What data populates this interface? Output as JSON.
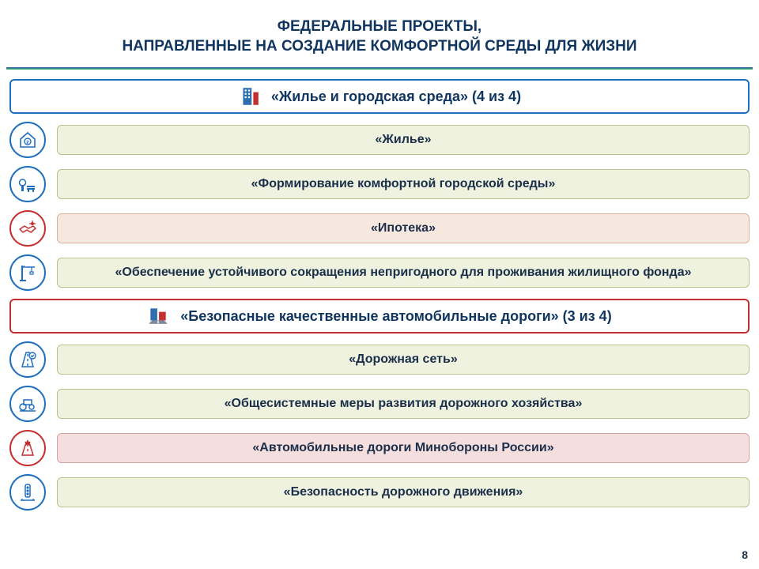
{
  "title_line1": "ФЕДЕРАЛЬНЫЕ ПРОЕКТЫ,",
  "title_line2": "НАПРАВЛЕННЫЕ НА СОЗДАНИЕ КОМФОРТНОЙ СРЕДЫ ДЛЯ ЖИЗНИ",
  "page_number": "8",
  "colors": {
    "title_text": "#10365f",
    "divider_top": "#2f6fb0",
    "divider_bottom": "#3aa56b",
    "text_dark": "#1c2f4a"
  },
  "sections": [
    {
      "header": "«Жилье и городская среда» (4 из 4)",
      "header_border": "#1f6fbf",
      "header_bg": "#ffffff",
      "icon": "building",
      "items": [
        {
          "label": "«Жилье»",
          "icon": "house-ruble",
          "circle_border": "#1f6fbf",
          "icon_color": "#1f6fbf",
          "pill_bg": "#eef2df",
          "pill_border": "#b8c48e"
        },
        {
          "label": "«Формирование комфортной городской среды»",
          "icon": "park",
          "circle_border": "#1f6fbf",
          "icon_color": "#1f6fbf",
          "pill_bg": "#eef2df",
          "pill_border": "#b8c48e"
        },
        {
          "label": "«Ипотека»",
          "icon": "handshake",
          "circle_border": "#c62f2f",
          "icon_color": "#c62f2f",
          "pill_bg": "#f7e8df",
          "pill_border": "#d9b39e"
        },
        {
          "label": "«Обеспечение устойчивого сокращения непригодного для проживания жилищного фонда»",
          "icon": "crane",
          "circle_border": "#1f6fbf",
          "icon_color": "#1f6fbf",
          "pill_bg": "#eef2df",
          "pill_border": "#b8c48e"
        }
      ]
    },
    {
      "header": "«Безопасные качественные автомобильные дороги» (3 из 4)",
      "header_border": "#c62f2f",
      "header_bg": "#ffffff",
      "icon": "city-road",
      "items": [
        {
          "label": "«Дорожная сеть»",
          "icon": "road-check",
          "circle_border": "#1f6fbf",
          "icon_color": "#1f6fbf",
          "pill_bg": "#eef2df",
          "pill_border": "#b8c48e"
        },
        {
          "label": "«Общесистемные меры развития дорожного хозяйства»",
          "icon": "road-roller",
          "circle_border": "#1f6fbf",
          "icon_color": "#1f6fbf",
          "pill_bg": "#eef2df",
          "pill_border": "#b8c48e"
        },
        {
          "label": "«Автомобильные дороги Минобороны России»",
          "icon": "military-road",
          "circle_border": "#c62f2f",
          "icon_color": "#c62f2f",
          "pill_bg": "#f4dede",
          "pill_border": "#d6a3a3"
        },
        {
          "label": "«Безопасность дорожного движения»",
          "icon": "traffic-light",
          "circle_border": "#1f6fbf",
          "icon_color": "#1f6fbf",
          "pill_bg": "#eef2df",
          "pill_border": "#b8c48e"
        }
      ]
    }
  ]
}
